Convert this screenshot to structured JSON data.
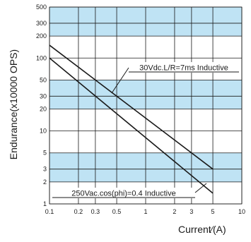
{
  "chart_data": {
    "type": "line",
    "title": "",
    "xlabel": "Current∕(A)",
    "ylabel": "Endurance(x10000 OPS)",
    "x_scale": "log",
    "y_scale": "log",
    "xlim": [
      0.1,
      10
    ],
    "ylim": [
      1,
      500
    ],
    "x_ticks": [
      0.1,
      0.2,
      0.3,
      0.5,
      1,
      2,
      3,
      5,
      10
    ],
    "x_tick_labels": [
      "0.1",
      "0.2",
      "0.3",
      "0.5",
      "1",
      "2",
      "3",
      "5",
      "10"
    ],
    "y_ticks": [
      1,
      2,
      3,
      5,
      10,
      20,
      30,
      50,
      100,
      200,
      300,
      500
    ],
    "y_tick_labels": [
      "1",
      "2",
      "3",
      "5",
      "10",
      "20",
      "30",
      "50",
      "100",
      "200",
      "300",
      "500"
    ],
    "grid": true,
    "band_color": "#bfe3f4",
    "line_color": "#1a1a1a",
    "series": [
      {
        "name": "30Vdc.L/R=7ms Inductive",
        "x": [
          0.1,
          5
        ],
        "y": [
          150,
          3
        ]
      },
      {
        "name": "250Vac.cos(phi)=0.4 Inductive",
        "x": [
          0.1,
          5
        ],
        "y": [
          100,
          1.4
        ]
      }
    ],
    "annotations": [
      {
        "text": "30Vdc.L/R=7ms Inductive",
        "series": 0
      },
      {
        "text": "250Vac.cos(phi)=0.4 Inductive",
        "series": 1
      }
    ]
  }
}
